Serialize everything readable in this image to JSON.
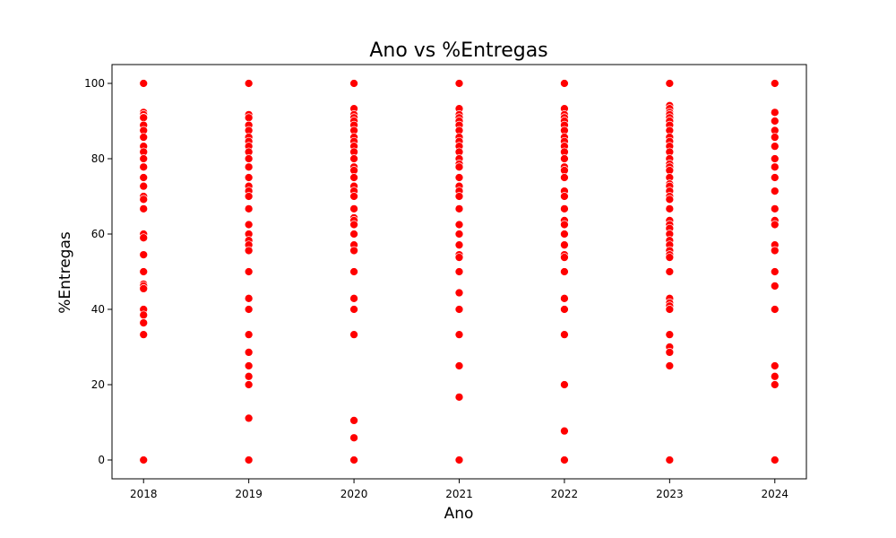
{
  "chart_data": {
    "type": "scatter",
    "title": "Ano vs %Entregas",
    "xlabel": "Ano",
    "ylabel": "%Entregas",
    "x_ticks": [
      2018,
      2019,
      2020,
      2021,
      2022,
      2023,
      2024
    ],
    "x_tick_labels": [
      "2018",
      "2019",
      "2020",
      "2021",
      "2022",
      "2023",
      "2024"
    ],
    "y_ticks": [
      0,
      20,
      40,
      60,
      80,
      100
    ],
    "y_tick_labels": [
      "0",
      "20",
      "40",
      "60",
      "80",
      "100"
    ],
    "xlim": [
      2017.7,
      2024.3
    ],
    "ylim": [
      -5,
      105
    ],
    "grid": false,
    "marker_color": "#ff0000",
    "marker_edge_color": "#ffffff",
    "series": [
      {
        "x_values": [
          2018
        ],
        "y_values": [
          [
            100,
            92.3,
            91.7,
            91,
            90.9,
            88.9,
            87.5,
            85.7,
            83.3,
            81.8,
            80,
            77.8,
            75,
            72.7,
            70,
            69.2,
            66.7,
            60,
            59,
            54.5,
            50,
            46.7,
            46.2,
            45.5,
            40,
            38.5,
            36.4,
            33.3,
            0
          ]
        ]
      },
      {
        "x_values": [
          2019
        ],
        "y_values": [
          [
            100,
            91.7,
            90.9,
            88.9,
            87.5,
            85.7,
            84.6,
            83.3,
            81.8,
            80,
            77.8,
            75,
            72.7,
            71.4,
            70,
            66.7,
            62.5,
            60,
            58.3,
            57.1,
            55.6,
            50,
            42.9,
            40,
            33.3,
            28.6,
            25,
            22.2,
            20,
            11.1,
            0
          ]
        ]
      },
      {
        "x_values": [
          2020
        ],
        "y_values": [
          [
            100,
            93.3,
            91.7,
            90.9,
            90,
            88.9,
            87.5,
            85.7,
            84.6,
            83.3,
            81.8,
            80,
            77.8,
            76.9,
            75,
            72.7,
            71.4,
            70,
            66.7,
            64.3,
            63.6,
            62.5,
            60,
            57.1,
            55.6,
            50,
            42.9,
            40,
            33.3,
            10.5,
            5.9,
            0
          ]
        ]
      },
      {
        "x_values": [
          2021
        ],
        "y_values": [
          [
            100,
            93.3,
            91.7,
            90.9,
            90,
            88.9,
            87.5,
            85.7,
            84.6,
            83.3,
            81.8,
            80,
            78.6,
            77.8,
            75,
            72.7,
            71.4,
            70,
            66.7,
            62.5,
            60,
            57.1,
            54.5,
            53.8,
            50,
            44.4,
            40,
            33.3,
            25,
            16.7,
            0
          ]
        ]
      },
      {
        "x_values": [
          2022
        ],
        "y_values": [
          [
            100,
            93.3,
            91.7,
            90.9,
            90,
            88.9,
            87.5,
            85.7,
            84.6,
            83.3,
            81.8,
            80,
            77.8,
            76.9,
            75,
            71.4,
            70,
            66.7,
            63.6,
            62.5,
            60,
            57.1,
            54.5,
            53.8,
            50,
            42.9,
            40,
            33.3,
            20,
            7.7,
            0
          ]
        ]
      },
      {
        "x_values": [
          2023
        ],
        "y_values": [
          [
            100,
            94.1,
            93.3,
            92.3,
            91.7,
            90.9,
            90,
            88.9,
            87.5,
            85.7,
            84.6,
            83.3,
            81.8,
            80,
            78.6,
            77.8,
            76.9,
            75,
            73.3,
            72.7,
            71.4,
            70,
            69.2,
            66.7,
            63.6,
            62.5,
            61.5,
            60,
            58.3,
            57.1,
            55.6,
            54.5,
            53.8,
            50,
            42.9,
            41.7,
            40.9,
            40,
            33.3,
            30,
            28.6,
            25,
            0
          ]
        ]
      },
      {
        "x_values": [
          2024
        ],
        "y_values": [
          [
            100,
            92.3,
            90,
            87.5,
            85.7,
            83.3,
            80,
            77.8,
            75,
            71.4,
            66.7,
            63.6,
            62.5,
            57.1,
            55.6,
            50,
            46.2,
            40,
            25,
            22.2,
            20,
            0
          ]
        ]
      }
    ]
  }
}
